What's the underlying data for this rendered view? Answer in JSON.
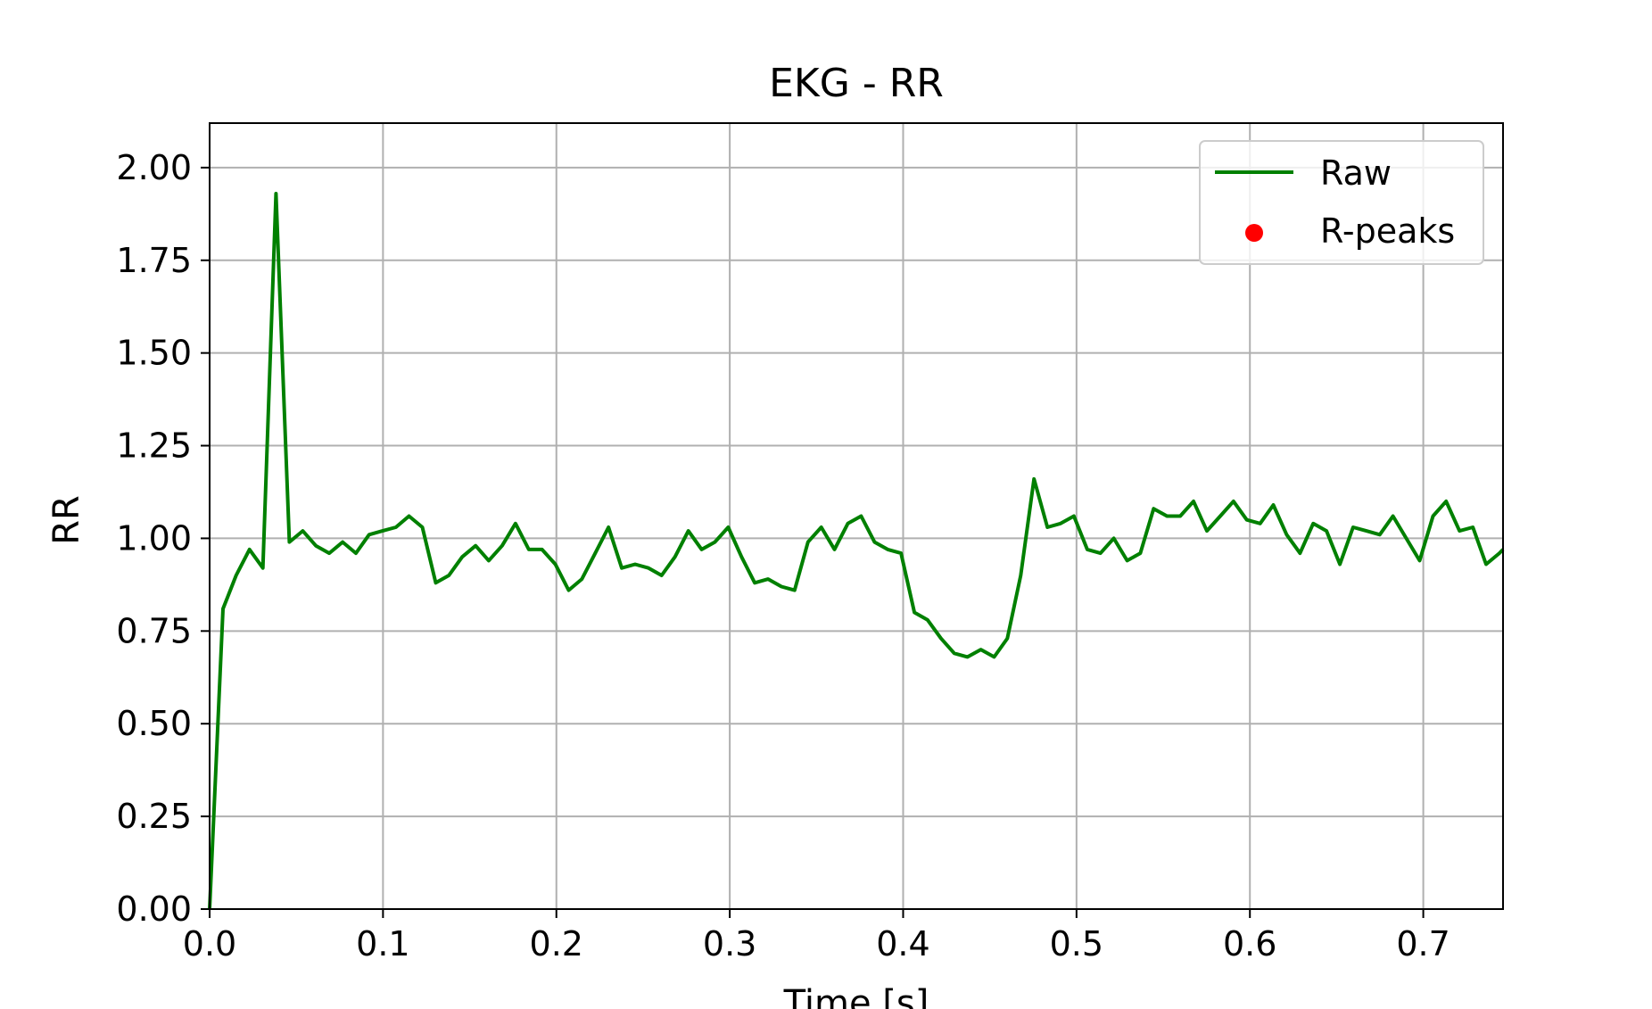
{
  "chart_data": {
    "type": "line",
    "title": "EKG - RR",
    "xlabel": "Time [s]",
    "ylabel": "RR",
    "xlim": [
      0.0,
      0.746
    ],
    "ylim": [
      0.0,
      2.12
    ],
    "x_ticks": [
      0.0,
      0.1,
      0.2,
      0.3,
      0.4,
      0.5,
      0.6,
      0.7
    ],
    "x_tick_labels": [
      "0.0",
      "0.1",
      "0.2",
      "0.3",
      "0.4",
      "0.5",
      "0.6",
      "0.7"
    ],
    "y_ticks": [
      0.0,
      0.25,
      0.5,
      0.75,
      1.0,
      1.25,
      1.5,
      1.75,
      2.0
    ],
    "y_tick_labels": [
      "0.00",
      "0.25",
      "0.50",
      "0.75",
      "1.00",
      "1.25",
      "1.50",
      "1.75",
      "2.00"
    ],
    "grid": true,
    "legend_position": "upper right",
    "legend": [
      "Raw",
      "R-peaks"
    ],
    "series": [
      {
        "name": "Raw",
        "kind": "line",
        "color": "#008000",
        "x": [
          0.0,
          0.0077,
          0.0153,
          0.023,
          0.0307,
          0.0383,
          0.046,
          0.0537,
          0.0613,
          0.069,
          0.0767,
          0.0844,
          0.092,
          0.0997,
          0.1074,
          0.115,
          0.1227,
          0.1304,
          0.138,
          0.1457,
          0.1534,
          0.161,
          0.1687,
          0.1764,
          0.1841,
          0.1917,
          0.1994,
          0.2071,
          0.2147,
          0.2224,
          0.2301,
          0.2377,
          0.2454,
          0.2531,
          0.2607,
          0.2684,
          0.2761,
          0.2838,
          0.2914,
          0.2991,
          0.3068,
          0.3144,
          0.3221,
          0.3298,
          0.3374,
          0.3451,
          0.3528,
          0.3604,
          0.3681,
          0.3758,
          0.3835,
          0.3911,
          0.3988,
          0.4065,
          0.4141,
          0.4218,
          0.4295,
          0.4371,
          0.4448,
          0.4525,
          0.4601,
          0.4678,
          0.4755,
          0.4832,
          0.4908,
          0.4985,
          0.5062,
          0.5138,
          0.5215,
          0.5292,
          0.5368,
          0.5445,
          0.5522,
          0.5598,
          0.5675,
          0.5752,
          0.5829,
          0.5905,
          0.5982,
          0.6059,
          0.6135,
          0.6212,
          0.6289,
          0.6365,
          0.6442,
          0.6519,
          0.6595,
          0.6672,
          0.6749,
          0.6825,
          0.6902,
          0.6979,
          0.7056,
          0.7132,
          0.7209,
          0.7286,
          0.7362,
          0.7439,
          0.746
        ],
        "y": [
          0.0,
          0.81,
          0.9,
          0.97,
          0.92,
          1.93,
          0.99,
          1.02,
          0.98,
          0.96,
          0.99,
          0.96,
          1.01,
          1.02,
          1.03,
          1.06,
          1.03,
          0.88,
          0.9,
          0.95,
          0.98,
          0.94,
          0.98,
          1.04,
          0.97,
          0.97,
          0.93,
          0.86,
          0.89,
          0.96,
          1.03,
          0.92,
          0.93,
          0.92,
          0.9,
          0.95,
          1.02,
          0.97,
          0.99,
          1.03,
          0.95,
          0.88,
          0.89,
          0.87,
          0.86,
          0.99,
          1.03,
          0.97,
          1.04,
          1.06,
          0.99,
          0.97,
          0.96,
          0.8,
          0.78,
          0.73,
          0.69,
          0.68,
          0.7,
          0.68,
          0.73,
          0.9,
          1.16,
          1.03,
          1.04,
          1.06,
          0.97,
          0.96,
          1.0,
          0.94,
          0.96,
          1.08,
          1.06,
          1.06,
          1.1,
          1.02,
          1.06,
          1.1,
          1.05,
          1.04,
          1.09,
          1.01,
          0.96,
          1.04,
          1.02,
          0.93,
          1.03,
          1.02,
          1.01,
          1.06,
          1.0,
          0.94,
          1.06,
          1.1,
          1.02,
          1.03,
          0.93,
          0.96,
          0.97
        ]
      },
      {
        "name": "R-peaks",
        "kind": "scatter",
        "color": "#ff0000",
        "x": [],
        "y": []
      }
    ]
  }
}
